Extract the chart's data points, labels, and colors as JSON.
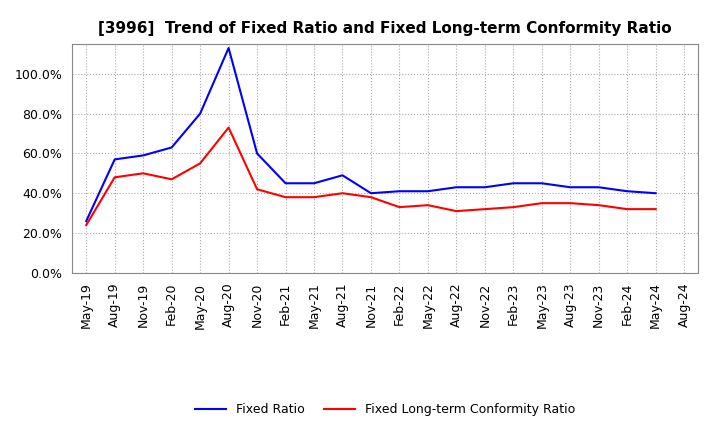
{
  "title": "[3996]  Trend of Fixed Ratio and Fixed Long-term Conformity Ratio",
  "x_labels": [
    "May-19",
    "Aug-19",
    "Nov-19",
    "Feb-20",
    "May-20",
    "Aug-20",
    "Nov-20",
    "Feb-21",
    "May-21",
    "Aug-21",
    "Nov-21",
    "Feb-22",
    "May-22",
    "Aug-22",
    "Nov-22",
    "Feb-23",
    "May-23",
    "Aug-23",
    "Nov-23",
    "Feb-24",
    "May-24",
    "Aug-24"
  ],
  "fixed_ratio": [
    0.26,
    0.57,
    0.59,
    0.63,
    0.8,
    1.13,
    0.6,
    0.45,
    0.45,
    0.49,
    0.4,
    0.41,
    0.41,
    0.43,
    0.43,
    0.45,
    0.45,
    0.43,
    0.43,
    0.41,
    0.4,
    null
  ],
  "fixed_lt_ratio": [
    0.24,
    0.48,
    0.5,
    0.47,
    0.55,
    0.73,
    0.42,
    0.38,
    0.38,
    0.4,
    0.38,
    0.33,
    0.34,
    0.31,
    0.32,
    0.33,
    0.35,
    0.35,
    0.34,
    0.32,
    0.32,
    null
  ],
  "fixed_ratio_color": "#0000FF",
  "fixed_lt_ratio_color": "#FF0000",
  "background_color": "#FFFFFF",
  "grid_color": "#AAAAAA",
  "ylim": [
    0.0,
    1.15
  ],
  "yticks": [
    0.0,
    0.2,
    0.4,
    0.6,
    0.8,
    1.0
  ],
  "legend_labels": [
    "Fixed Ratio",
    "Fixed Long-term Conformity Ratio"
  ],
  "title_fontsize": 11,
  "tick_fontsize": 9,
  "legend_fontsize": 9
}
